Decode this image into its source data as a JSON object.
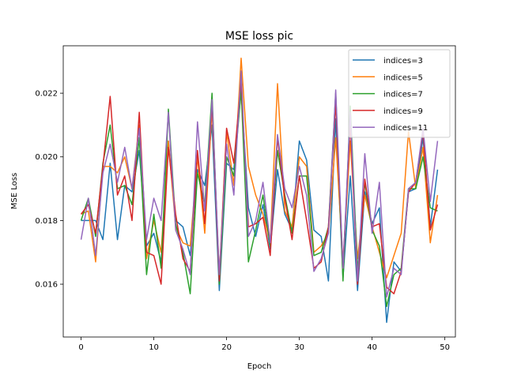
{
  "chart_data": {
    "type": "line",
    "title": "MSE loss pic",
    "xlabel": "Epoch",
    "ylabel": "MSE Loss",
    "xlim": [
      -2.45,
      51.45
    ],
    "ylim": [
      0.01434,
      0.02349
    ],
    "xticks": [
      0,
      10,
      20,
      30,
      40,
      50
    ],
    "yticks": [
      0.016,
      0.018,
      0.02,
      0.022
    ],
    "ytick_labels": [
      "0.016",
      "0.018",
      "0.020",
      "0.022"
    ],
    "grid": false,
    "legend_position": "top-right",
    "series": [
      {
        "name": "indices=3",
        "color": "#1f77b4",
        "values": [
          0.018,
          0.018,
          0.018,
          0.0174,
          0.0198,
          0.0174,
          0.0191,
          0.0189,
          0.0202,
          0.0172,
          0.0176,
          0.0167,
          0.0205,
          0.018,
          0.0178,
          0.0169,
          0.0196,
          0.0191,
          0.021,
          0.0158,
          0.0198,
          0.0196,
          0.0221,
          0.0184,
          0.0175,
          0.0185,
          0.0171,
          0.0196,
          0.0182,
          0.0177,
          0.0205,
          0.0199,
          0.0177,
          0.0175,
          0.0161,
          0.0212,
          0.0162,
          0.0194,
          0.0158,
          0.0189,
          0.0179,
          0.0184,
          0.0148,
          0.0167,
          0.0164,
          0.0189,
          0.019,
          0.0206,
          0.0178,
          0.0196
        ]
      },
      {
        "name": "indices=5",
        "color": "#ff7f0e",
        "values": [
          0.0182,
          0.0183,
          0.0167,
          0.0197,
          0.0197,
          0.0195,
          0.02,
          0.019,
          0.021,
          0.0168,
          0.018,
          0.017,
          0.0205,
          0.0178,
          0.0173,
          0.0172,
          0.02,
          0.0176,
          0.0215,
          0.0163,
          0.0208,
          0.0191,
          0.0231,
          0.0197,
          0.0188,
          0.0182,
          0.0173,
          0.0223,
          0.0183,
          0.0178,
          0.02,
          0.0197,
          0.017,
          0.0172,
          0.0176,
          0.0206,
          0.0167,
          0.0205,
          0.0168,
          0.0188,
          0.0178,
          0.017,
          0.0162,
          0.0169,
          0.0176,
          0.0208,
          0.019,
          0.0203,
          0.0173,
          0.0188
        ]
      },
      {
        "name": "indices=7",
        "color": "#2ca02c",
        "values": [
          0.018,
          0.0187,
          0.0175,
          0.0198,
          0.021,
          0.019,
          0.0191,
          0.0185,
          0.0206,
          0.0163,
          0.0182,
          0.0165,
          0.0215,
          0.0179,
          0.017,
          0.0157,
          0.0195,
          0.0185,
          0.022,
          0.016,
          0.02,
          0.0194,
          0.0221,
          0.0167,
          0.0177,
          0.0188,
          0.0172,
          0.0202,
          0.0188,
          0.0176,
          0.0194,
          0.0194,
          0.0169,
          0.017,
          0.0178,
          0.022,
          0.0161,
          0.0216,
          0.0164,
          0.0192,
          0.0177,
          0.0172,
          0.0153,
          0.0163,
          0.0165,
          0.019,
          0.019,
          0.02,
          0.0184,
          0.0183
        ]
      },
      {
        "name": "indices=9",
        "color": "#d62728",
        "values": [
          0.0182,
          0.0185,
          0.0176,
          0.0197,
          0.0219,
          0.0188,
          0.0194,
          0.018,
          0.0214,
          0.017,
          0.0169,
          0.016,
          0.0203,
          0.0182,
          0.0168,
          0.0164,
          0.0202,
          0.0179,
          0.0217,
          0.0161,
          0.0209,
          0.0198,
          0.0224,
          0.0178,
          0.0179,
          0.0181,
          0.0169,
          0.0206,
          0.0187,
          0.0174,
          0.0194,
          0.018,
          0.0165,
          0.0167,
          0.0178,
          0.0217,
          0.0165,
          0.0211,
          0.016,
          0.0193,
          0.0178,
          0.0179,
          0.0159,
          0.0157,
          0.0164,
          0.0189,
          0.0192,
          0.0208,
          0.0177,
          0.0185
        ]
      },
      {
        "name": "indices=11",
        "color": "#9467bd",
        "values": [
          0.0174,
          0.0187,
          0.0169,
          0.0195,
          0.0204,
          0.0192,
          0.0203,
          0.019,
          0.0209,
          0.0174,
          0.0187,
          0.018,
          0.0214,
          0.0177,
          0.0171,
          0.0163,
          0.0211,
          0.0183,
          0.0218,
          0.0163,
          0.0204,
          0.0188,
          0.0227,
          0.0175,
          0.018,
          0.0192,
          0.0173,
          0.0207,
          0.019,
          0.0184,
          0.0197,
          0.0188,
          0.0164,
          0.0168,
          0.0176,
          0.0221,
          0.0165,
          0.0214,
          0.0161,
          0.0201,
          0.0176,
          0.0192,
          0.0156,
          0.0165,
          0.0163,
          0.019,
          0.0192,
          0.0209,
          0.0186,
          0.0205
        ]
      }
    ]
  }
}
